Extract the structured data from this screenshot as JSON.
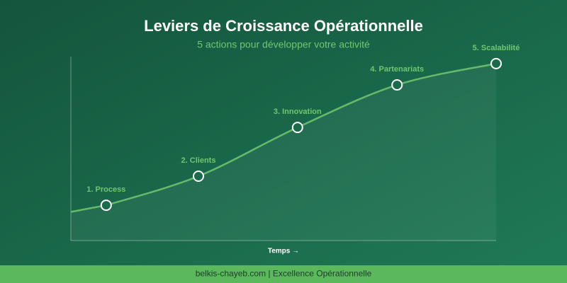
{
  "chart_data": {
    "type": "line",
    "title": "Leviers de Croissance Opérationnelle",
    "subtitle": "5 actions pour développer votre activité",
    "x_label": "Temps →",
    "footer": "belkis-chayeb.com | Excellence Opérationnelle",
    "categories": [
      "1. Process",
      "2. Clients",
      "3. Innovation",
      "4. Partenariats",
      "5. Scalabilité"
    ],
    "x": [
      8.3,
      30,
      53.3,
      76.7,
      100
    ],
    "values": [
      19.2,
      35,
      61.5,
      84.6,
      96.2
    ],
    "xlim": [
      0,
      100
    ],
    "ylim": [
      0,
      100
    ],
    "color": "#66bb6a"
  }
}
